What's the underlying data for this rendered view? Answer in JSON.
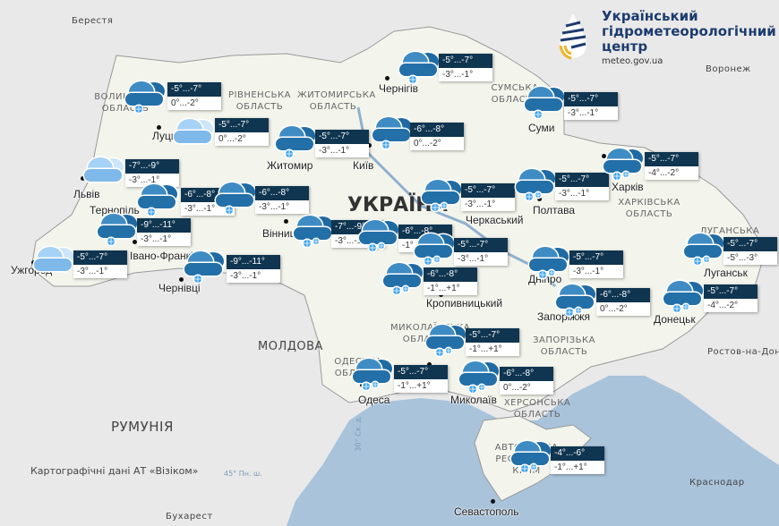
{
  "logo": {
    "name_lines": [
      "Український",
      "гідрометеорологічний",
      "центр"
    ],
    "url": "meteo.gov.ua"
  },
  "colors": {
    "box_header": "#0f3550",
    "sea": "#a9c3da",
    "land": "#f4f5ef",
    "outside": "#e9e9e9",
    "cloud_dark": "#2b79b3",
    "cloud_light": "#8ec3ee"
  },
  "country_label": "УКРАЇНА",
  "neighbors": [
    "Берестя",
    "Воронеж",
    "МОЛДОВА",
    "РУМУНІЯ",
    "Бухарест",
    "Краснодар",
    "Ростов-на-Дону"
  ],
  "cities": [
    "Луцьк",
    "Львів",
    "Тернопіль",
    "Івано-Франківськ",
    "Ужгород",
    "Чернівці",
    "Житомир",
    "Київ",
    "Чернігів",
    "Суми",
    "Вінниця",
    "Полтава",
    "Харків",
    "Черкаський",
    "Дніпро",
    "Запоріжжя",
    "Донецьк",
    "Луганськ",
    "Миколаїв",
    "Одеса",
    "Севастополь",
    "Кропивницький"
  ],
  "regions": [
    "ВОЛИНСЬКА ОБЛАСТЬ",
    "РІВНЕНСЬКА ОБЛАСТЬ",
    "ЖИТОМИРСЬКА ОБЛАСТЬ",
    "СУМСЬКА ОБЛАСТЬ",
    "ХАРКІВСЬКА ОБЛАСТЬ",
    "ЛУГАНСЬКА",
    "МИКОЛАЇВСЬКА ОБЛАСТЬ",
    "ОДЕСЬКА ОБЛАСТЬ",
    "ЗАПОРІЗЬКА ОБЛАСТЬ",
    "ХЕРСОНСЬКА ОБЛАСТЬ",
    "АВТОНОМНА РЕСПУБЛІКА КРИМ"
  ],
  "credit": "Картографічні дані АТ «Візіком»",
  "graticule": [
    "45° Пн. ш.",
    "30° Сх. д."
  ],
  "forecasts": [
    {
      "night": "-5°...-7°",
      "day": "0°...-2°",
      "icon": "snow-cloud-icon"
    },
    {
      "night": "-5°...-7°",
      "day": "0°...-2°",
      "icon": "cloud-icon"
    },
    {
      "night": "-5°...-7°",
      "day": "-3°...-1°",
      "icon": "snow-cloud-icon"
    },
    {
      "night": "-5°...-7°",
      "day": "-3°...-1°",
      "icon": "snow-cloud-icon"
    },
    {
      "night": "-6°...-8°",
      "day": "0°...-2°",
      "icon": "snow-cloud-icon"
    },
    {
      "night": "-5°...-7°",
      "day": "-3°...-1°",
      "icon": "snow-cloud-icon"
    },
    {
      "night": "-7°...-9°",
      "day": "-3°...-1°",
      "icon": "cloud-icon"
    },
    {
      "night": "-6°...-8°",
      "day": "-3°...-1°",
      "icon": "snow-cloud-icon"
    },
    {
      "night": "-6°...-8°",
      "day": "-3°...-1°",
      "icon": "snow-cloud-icon"
    },
    {
      "night": "-5°...-7°",
      "day": "-3°...-1°",
      "icon": "heavy-snow-cloud-icon"
    },
    {
      "night": "-5°...-7°",
      "day": "-3°...-1°",
      "icon": "heavy-snow-cloud-icon"
    },
    {
      "night": "-5°...-7°",
      "day": "-4°...-2°",
      "icon": "heavy-snow-cloud-icon"
    },
    {
      "night": "-9°...-11°",
      "day": "-3°...-1°",
      "icon": "snow-cloud-icon"
    },
    {
      "night": "-7°...-9°",
      "day": "-3°...-1°",
      "icon": "heavy-snow-cloud-icon"
    },
    {
      "night": "-6°...-8°",
      "day": "-1°...+1°",
      "icon": "heavy-snow-cloud-icon"
    },
    {
      "night": "-5°...-7°",
      "day": "-3°...-1°",
      "icon": "heavy-snow-cloud-icon"
    },
    {
      "night": "-5°...-7°",
      "day": "-3°...-1°",
      "icon": "cloud-icon"
    },
    {
      "night": "-9°...-11°",
      "day": "-3°...-1°",
      "icon": "snow-cloud-icon"
    },
    {
      "night": "-6°...-8°",
      "day": "-1°...+1°",
      "icon": "heavy-snow-cloud-icon"
    },
    {
      "night": "-5°...-7°",
      "day": "-3°...-1°",
      "icon": "heavy-snow-cloud-icon"
    },
    {
      "night": "-5°...-7°",
      "day": "-5°...-3°",
      "icon": "heavy-snow-cloud-icon"
    },
    {
      "night": "-6°...-8°",
      "day": "0°...-2°",
      "icon": "heavy-snow-cloud-icon"
    },
    {
      "night": "-5°...-7°",
      "day": "-4°...-2°",
      "icon": "heavy-snow-cloud-icon"
    },
    {
      "night": "-5°...-7°",
      "day": "-1°...+1°",
      "icon": "heavy-snow-cloud-icon"
    },
    {
      "night": "-5°...-7°",
      "day": "-1°...+1°",
      "icon": "heavy-snow-cloud-icon"
    },
    {
      "night": "-6°...-8°",
      "day": "0°...-2°",
      "icon": "heavy-snow-cloud-icon"
    },
    {
      "night": "-4°...-6°",
      "day": "-1°...+1°",
      "icon": "heavy-snow-cloud-icon"
    }
  ]
}
